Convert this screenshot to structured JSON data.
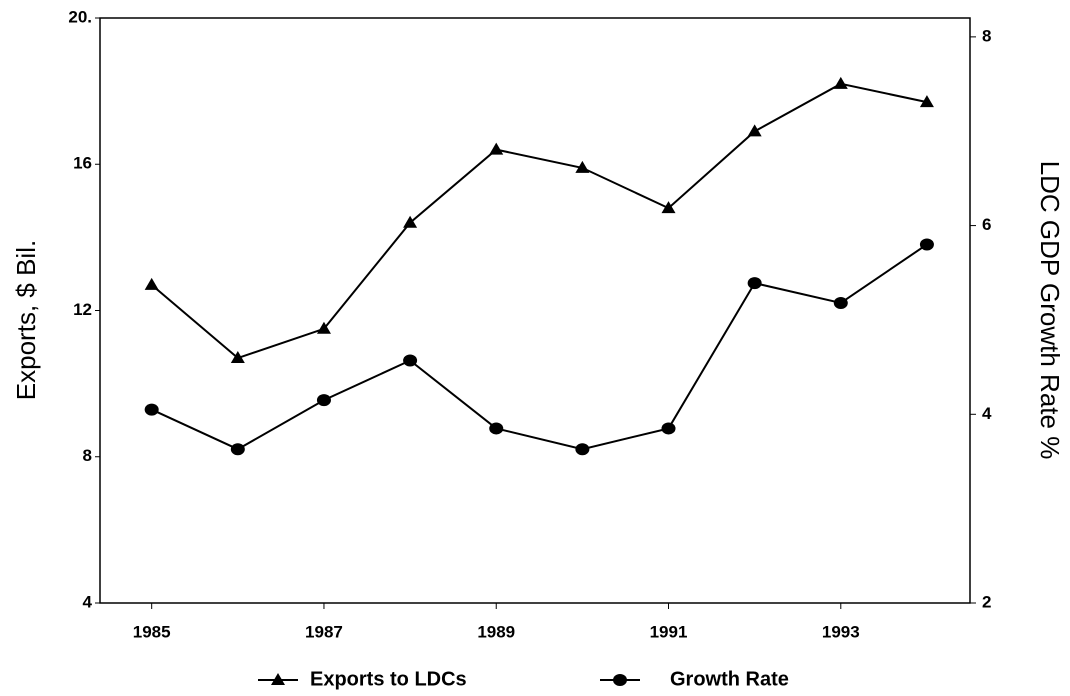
{
  "chart_data": {
    "type": "line",
    "x": [
      1985,
      1986,
      1987,
      1988,
      1989,
      1990,
      1991,
      1992,
      1993,
      1994
    ],
    "xlim": [
      1984.4,
      1994.5
    ],
    "xticks": [
      1985,
      1987,
      1989,
      1991,
      1993
    ],
    "ylabel": "Exports, $ Bil.",
    "ylim": [
      4,
      20
    ],
    "yticks": [
      4,
      8,
      12,
      16,
      {
        "value": 20,
        "label": "20."
      }
    ],
    "y2label": "LDC GDP Growth Rate %",
    "y2lim": [
      2,
      8.2
    ],
    "y2ticks": [
      2,
      4,
      6,
      8
    ],
    "series": [
      {
        "name": "Exports to LDCs",
        "color": "#000000",
        "marker": "triangle",
        "values": [
          12.7,
          10.7,
          11.5,
          14.4,
          16.4,
          15.9,
          14.8,
          16.9,
          18.2,
          17.7
        ]
      },
      {
        "name": "Growth Rate",
        "color": "#000000",
        "marker": "circle",
        "axis": "y2",
        "values": [
          4.05,
          3.63,
          4.15,
          4.57,
          3.85,
          3.63,
          3.85,
          5.39,
          5.18,
          5.8
        ]
      }
    ]
  }
}
